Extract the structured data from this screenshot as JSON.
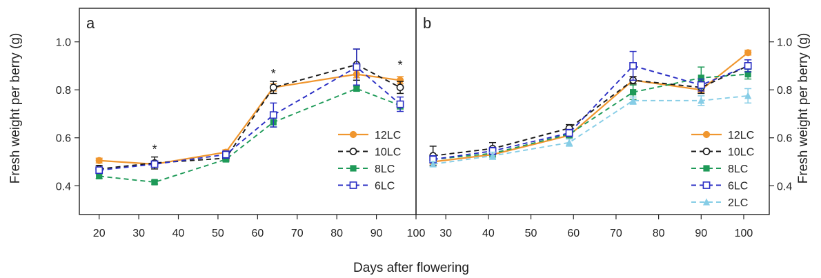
{
  "chart_data": {
    "type": "line",
    "xlabel": "Days after flowering",
    "ylabel": "Fresh weight per berry (g)",
    "colors": {
      "12LC": "#f0962e",
      "10LC": "#1a1a1a",
      "8LC": "#1e9a58",
      "6LC": "#2b2fc4",
      "2LC": "#86cde6"
    },
    "panels": [
      {
        "label": "a",
        "xlim": [
          15,
          100
        ],
        "xticks": [
          20,
          30,
          40,
          50,
          60,
          70,
          80,
          90,
          100
        ],
        "ylim": [
          0.28,
          1.14
        ],
        "yticks": [
          "0.4",
          "0.6",
          "0.8",
          "1.0"
        ],
        "yaxis_side": "left",
        "significance": [
          {
            "x": 34,
            "y": 0.535,
            "text": "*"
          },
          {
            "x": 64,
            "y": 0.85,
            "text": "*"
          },
          {
            "x": 96,
            "y": 0.885,
            "text": "*"
          }
        ],
        "series": [
          {
            "name": "12LC",
            "style": "solid",
            "marker": "filled-circle",
            "x": [
              20,
              34,
              52,
              64,
              85,
              96
            ],
            "y": [
              0.505,
              0.49,
              0.54,
              0.81,
              0.865,
              0.84
            ],
            "err": [
              0.01,
              0.01,
              0.01,
              0.015,
              0.015,
              0.015
            ]
          },
          {
            "name": "10LC",
            "style": "dashed",
            "marker": "open-circle",
            "x": [
              20,
              34,
              52,
              64,
              85,
              96
            ],
            "y": [
              0.47,
              0.495,
              0.515,
              0.81,
              0.905,
              0.81
            ],
            "err": [
              0.015,
              0.025,
              0.01,
              0.025,
              0.065,
              0.025
            ]
          },
          {
            "name": "8LC",
            "style": "dashed",
            "marker": "filled-square",
            "x": [
              20,
              34,
              52,
              64,
              85,
              96
            ],
            "y": [
              0.44,
              0.415,
              0.51,
              0.665,
              0.805,
              0.735
            ],
            "err": [
              0.01,
              0.008,
              0.01,
              0.02,
              0.01,
              0.015
            ]
          },
          {
            "name": "6LC",
            "style": "dashed",
            "marker": "open-square",
            "x": [
              20,
              34,
              52,
              64,
              85,
              96
            ],
            "y": [
              0.465,
              0.49,
              0.53,
              0.695,
              0.895,
              0.74
            ],
            "err": [
              0.01,
              0.01,
              0.015,
              0.05,
              0.075,
              0.03
            ]
          }
        ]
      },
      {
        "label": "b",
        "xlim": [
          23,
          106
        ],
        "xticks": [
          30,
          40,
          50,
          60,
          70,
          80,
          90,
          100
        ],
        "ylim": [
          0.28,
          1.14
        ],
        "yticks": [
          "0.4",
          "0.6",
          "0.8",
          "1.0"
        ],
        "yaxis_side": "right",
        "significance": [],
        "series": [
          {
            "name": "12LC",
            "style": "solid",
            "marker": "filled-circle",
            "x": [
              27,
              41,
              59,
              74,
              90,
              101
            ],
            "y": [
              0.5,
              0.53,
              0.61,
              0.84,
              0.8,
              0.955
            ],
            "err": [
              0.01,
              0.01,
              0.01,
              0.015,
              0.01,
              0.01
            ]
          },
          {
            "name": "10LC",
            "style": "dashed",
            "marker": "open-circle",
            "x": [
              27,
              41,
              59,
              74,
              90,
              101
            ],
            "y": [
              0.525,
              0.555,
              0.64,
              0.84,
              0.81,
              0.9
            ],
            "err": [
              0.04,
              0.025,
              0.015,
              0.015,
              0.025,
              0.025
            ]
          },
          {
            "name": "8LC",
            "style": "dashed",
            "marker": "filled-square",
            "x": [
              27,
              41,
              59,
              74,
              90,
              101
            ],
            "y": [
              0.51,
              0.535,
              0.615,
              0.79,
              0.85,
              0.865
            ],
            "err": [
              0.015,
              0.015,
              0.015,
              0.03,
              0.045,
              0.02
            ]
          },
          {
            "name": "6LC",
            "style": "dashed",
            "marker": "open-square",
            "x": [
              27,
              41,
              59,
              74,
              90,
              101
            ],
            "y": [
              0.51,
              0.545,
              0.62,
              0.9,
              0.82,
              0.9
            ],
            "err": [
              0.015,
              0.015,
              0.015,
              0.06,
              0.025,
              0.025
            ]
          },
          {
            "name": "2LC",
            "style": "dashed",
            "marker": "filled-triangle",
            "x": [
              27,
              41,
              59,
              74,
              90,
              101
            ],
            "y": [
              0.49,
              0.525,
              0.58,
              0.755,
              0.755,
              0.775
            ],
            "err": [
              0.01,
              0.015,
              0.015,
              0.015,
              0.02,
              0.03
            ]
          }
        ]
      }
    ]
  }
}
